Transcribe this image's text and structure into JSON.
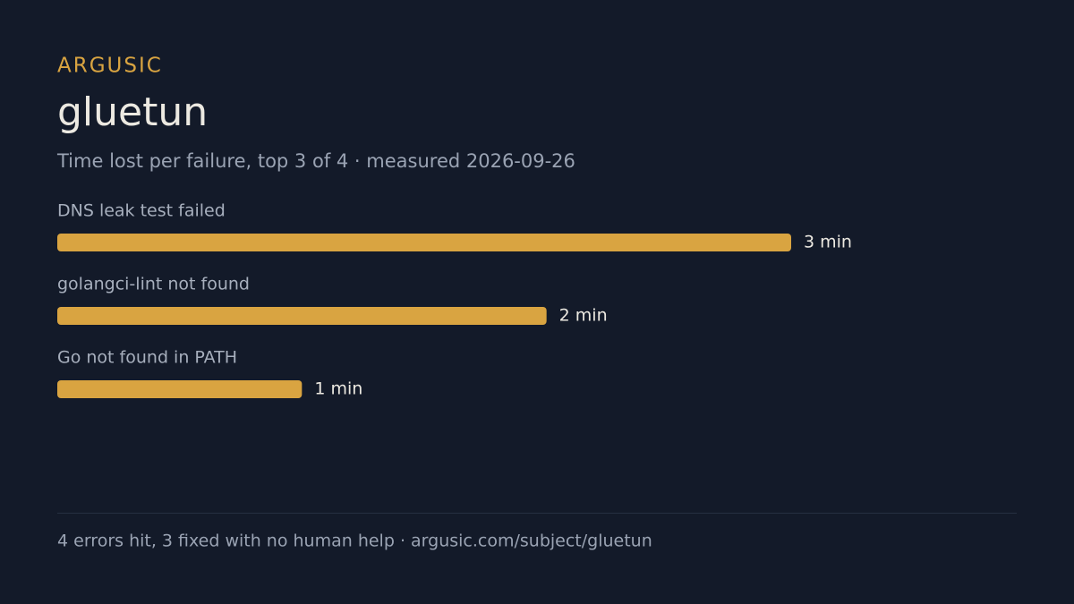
{
  "chart_data": {
    "type": "bar",
    "orientation": "horizontal",
    "brand": "ARGUSIC",
    "title": "gluetun",
    "subtitle": "Time lost per failure, top 3 of 4 · measured 2026-09-26",
    "categories": [
      "DNS leak test failed",
      "golangci-lint not found",
      "Go not found in PATH"
    ],
    "values": [
      3,
      2,
      1
    ],
    "value_labels": [
      "3 min",
      "2 min",
      "1 min"
    ],
    "color": "#d9a441",
    "footer": "4 errors hit, 3 fixed with no human help · argusic.com/subject/gluetun"
  }
}
